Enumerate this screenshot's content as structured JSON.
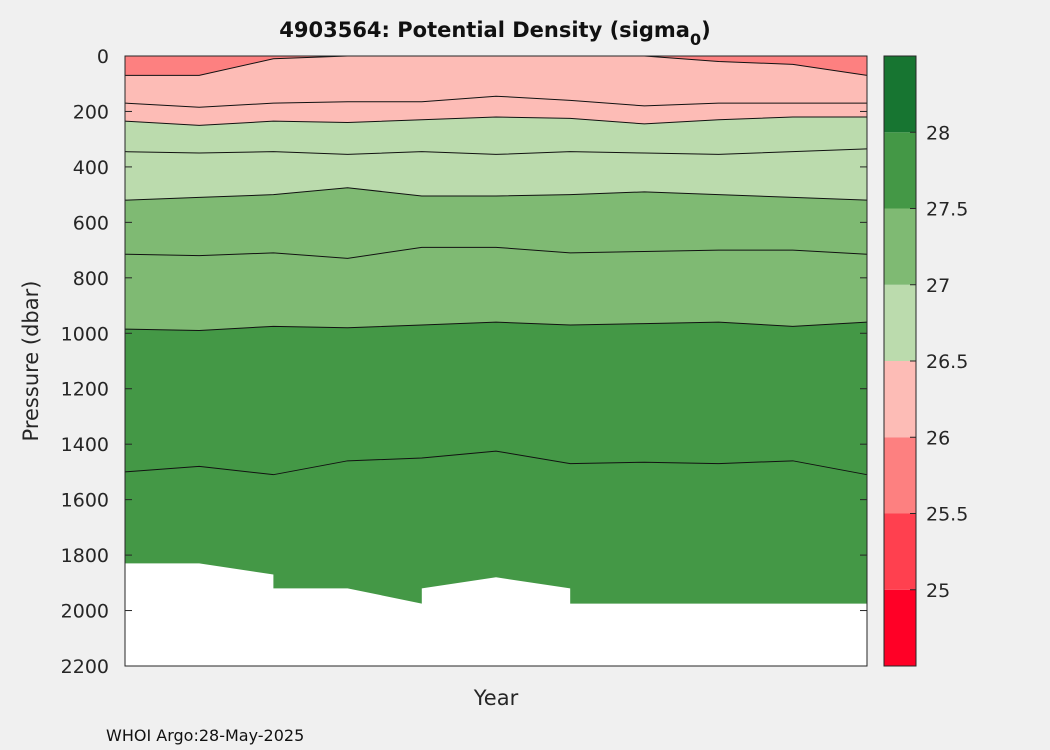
{
  "chart_data": {
    "type": "contour",
    "title": "4903564: Potential Density (sigma",
    "title_subscript": "0",
    "title_suffix": ")",
    "xlabel": "Year",
    "ylabel": "Pressure (dbar)",
    "x_tick_labels": [],
    "y_axis": {
      "ylim": [
        0,
        2200
      ],
      "reversed": true,
      "ticks": [
        0,
        200,
        400,
        600,
        800,
        1000,
        1200,
        1400,
        1600,
        1800,
        2000,
        2200
      ]
    },
    "x": [
      0,
      0.1,
      0.2,
      0.3,
      0.4,
      0.5,
      0.6,
      0.7,
      0.8,
      0.9,
      1.0
    ],
    "colorbar": {
      "range": [
        24.5,
        28.5
      ],
      "ticks": [
        25,
        25.5,
        26,
        26.5,
        27,
        27.5,
        28
      ],
      "bands": [
        {
          "from": 24.5,
          "to": 25.0,
          "color": "#ff0026"
        },
        {
          "from": 25.0,
          "to": 25.5,
          "color": "#ff404f"
        },
        {
          "from": 25.5,
          "to": 26.0,
          "color": "#fd8080"
        },
        {
          "from": 26.0,
          "to": 26.5,
          "color": "#fdbcb6"
        },
        {
          "from": 26.5,
          "to": 27.0,
          "color": "#bbdbad"
        },
        {
          "from": 27.0,
          "to": 27.5,
          "color": "#7fba73"
        },
        {
          "from": 27.5,
          "to": 28.0,
          "color": "#449846"
        },
        {
          "from": 28.0,
          "to": 28.5,
          "color": "#177531"
        }
      ]
    },
    "isopycnal_depths_dbar": [
      {
        "level": 26.0,
        "depths": [
          70,
          70,
          10,
          0,
          0,
          0,
          0,
          0,
          20,
          30,
          70
        ]
      },
      {
        "level": 26.5,
        "depths": [
          170,
          185,
          170,
          165,
          165,
          145,
          160,
          180,
          170,
          170,
          170
        ]
      },
      {
        "level": "26.5 (band edge)",
        "depths": [
          235,
          250,
          235,
          240,
          230,
          220,
          225,
          245,
          230,
          220,
          220
        ]
      },
      {
        "level": 27.0,
        "depths": [
          345,
          350,
          345,
          355,
          345,
          355,
          345,
          350,
          355,
          345,
          335
        ]
      },
      {
        "level": "27.0 (band edge)",
        "depths": [
          520,
          510,
          500,
          475,
          505,
          505,
          500,
          490,
          500,
          510,
          520
        ]
      },
      {
        "level": 27.5,
        "depths": [
          715,
          720,
          710,
          730,
          690,
          690,
          710,
          705,
          700,
          700,
          715
        ]
      },
      {
        "level": "27.5 (band edge)",
        "depths": [
          985,
          990,
          975,
          980,
          970,
          960,
          970,
          965,
          960,
          975,
          960
        ]
      },
      {
        "level": 28.0,
        "depths": [
          1500,
          1480,
          1510,
          1460,
          1450,
          1425,
          1470,
          1465,
          1470,
          1460,
          1510
        ]
      }
    ],
    "max_profile_depth_dbar": [
      [
        0.0,
        1830
      ],
      [
        0.1,
        1830
      ],
      [
        0.2,
        1870
      ],
      [
        0.2,
        1920
      ],
      [
        0.3,
        1920
      ],
      [
        0.4,
        1975
      ],
      [
        0.4,
        1920
      ],
      [
        0.5,
        1880
      ],
      [
        0.6,
        1920
      ],
      [
        0.6,
        1975
      ],
      [
        1.0,
        1975
      ]
    ]
  },
  "footer": "WHOI Argo:28-May-2025",
  "colors": {
    "background": "#f0f0f0",
    "plot_background": "#ffffff",
    "contour_line": "#111111"
  }
}
